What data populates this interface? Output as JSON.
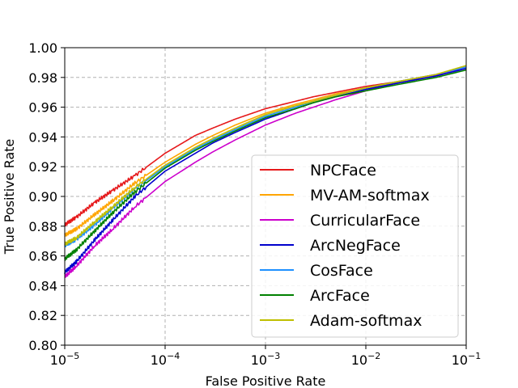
{
  "chart_data": {
    "type": "line",
    "xlabel": "False Positive Rate",
    "ylabel": "True Positive Rate",
    "xscale": "log",
    "xlim": [
      1e-05,
      0.1
    ],
    "ylim": [
      0.8,
      1.0
    ],
    "grid": true,
    "legend_position": "lower-right",
    "x_ticks": [
      {
        "value": 1e-05,
        "base": "10",
        "exp": "−5"
      },
      {
        "value": 0.0001,
        "base": "10",
        "exp": "−4"
      },
      {
        "value": 0.001,
        "base": "10",
        "exp": "−3"
      },
      {
        "value": 0.01,
        "base": "10",
        "exp": "−2"
      },
      {
        "value": 0.1,
        "base": "10",
        "exp": "−1"
      }
    ],
    "y_ticks": [
      {
        "value": 0.8,
        "label": "0.80"
      },
      {
        "value": 0.82,
        "label": "0.82"
      },
      {
        "value": 0.84,
        "label": "0.84"
      },
      {
        "value": 0.86,
        "label": "0.86"
      },
      {
        "value": 0.88,
        "label": "0.88"
      },
      {
        "value": 0.9,
        "label": "0.90"
      },
      {
        "value": 0.92,
        "label": "0.92"
      },
      {
        "value": 0.94,
        "label": "0.94"
      },
      {
        "value": 0.96,
        "label": "0.96"
      },
      {
        "value": 0.98,
        "label": "0.98"
      },
      {
        "value": 1.0,
        "label": "1.00"
      }
    ],
    "series": [
      {
        "name": "NPCFace",
        "color": "#e6191b",
        "x": [
          1e-05,
          1.3e-05,
          2e-05,
          3e-05,
          5e-05,
          0.0001,
          0.0002,
          0.0003,
          0.0005,
          0.001,
          0.002,
          0.003,
          0.005,
          0.01,
          0.02,
          0.05,
          0.1
        ],
        "y": [
          0.881,
          0.886,
          0.896,
          0.904,
          0.914,
          0.929,
          0.941,
          0.946,
          0.952,
          0.959,
          0.964,
          0.967,
          0.97,
          0.974,
          0.977,
          0.982,
          0.987
        ]
      },
      {
        "name": "MV-AM-softmax",
        "color": "#ffa500",
        "x": [
          1e-05,
          1.3e-05,
          2e-05,
          3e-05,
          5e-05,
          0.0001,
          0.0002,
          0.0003,
          0.0005,
          0.001,
          0.002,
          0.003,
          0.005,
          0.01,
          0.02,
          0.05,
          0.1
        ],
        "y": [
          0.874,
          0.878,
          0.888,
          0.897,
          0.909,
          0.923,
          0.935,
          0.941,
          0.948,
          0.956,
          0.962,
          0.965,
          0.969,
          0.973,
          0.976,
          0.981,
          0.986
        ]
      },
      {
        "name": "CurricularFace",
        "color": "#cc00cc",
        "x": [
          1e-05,
          1.3e-05,
          2e-05,
          3e-05,
          5e-05,
          0.0001,
          0.0002,
          0.0003,
          0.0005,
          0.001,
          0.002,
          0.003,
          0.005,
          0.01,
          0.02,
          0.05,
          0.1
        ],
        "y": [
          0.846,
          0.853,
          0.867,
          0.878,
          0.893,
          0.91,
          0.923,
          0.93,
          0.938,
          0.948,
          0.956,
          0.96,
          0.965,
          0.971,
          0.976,
          0.981,
          0.987
        ]
      },
      {
        "name": "ArcNegFace",
        "color": "#0000cc",
        "x": [
          1e-05,
          1.3e-05,
          2e-05,
          3e-05,
          5e-05,
          0.0001,
          0.0002,
          0.0003,
          0.0005,
          0.001,
          0.002,
          0.003,
          0.005,
          0.01,
          0.02,
          0.05,
          0.1
        ],
        "y": [
          0.849,
          0.856,
          0.871,
          0.884,
          0.9,
          0.917,
          0.929,
          0.936,
          0.943,
          0.952,
          0.959,
          0.963,
          0.967,
          0.972,
          0.976,
          0.981,
          0.986
        ]
      },
      {
        "name": "CosFace",
        "color": "#1e90ff",
        "x": [
          1e-05,
          1.3e-05,
          2e-05,
          3e-05,
          5e-05,
          0.0001,
          0.0002,
          0.0003,
          0.0005,
          0.001,
          0.002,
          0.003,
          0.005,
          0.01,
          0.02,
          0.05,
          0.1
        ],
        "y": [
          0.867,
          0.871,
          0.881,
          0.892,
          0.905,
          0.92,
          0.932,
          0.938,
          0.945,
          0.954,
          0.96,
          0.964,
          0.968,
          0.973,
          0.977,
          0.982,
          0.987
        ]
      },
      {
        "name": "ArcFace",
        "color": "#008000",
        "x": [
          1e-05,
          1.3e-05,
          2e-05,
          3e-05,
          5e-05,
          0.0001,
          0.0002,
          0.0003,
          0.0005,
          0.001,
          0.002,
          0.003,
          0.005,
          0.01,
          0.02,
          0.05,
          0.1
        ],
        "y": [
          0.858,
          0.864,
          0.877,
          0.889,
          0.903,
          0.919,
          0.931,
          0.937,
          0.944,
          0.953,
          0.959,
          0.963,
          0.967,
          0.971,
          0.975,
          0.98,
          0.985
        ]
      },
      {
        "name": "Adam-softmax",
        "color": "#bfbf00",
        "x": [
          1e-05,
          1.3e-05,
          2e-05,
          3e-05,
          5e-05,
          0.0001,
          0.0002,
          0.0003,
          0.0005,
          0.001,
          0.002,
          0.003,
          0.005,
          0.01,
          0.02,
          0.05,
          0.1
        ],
        "y": [
          0.868,
          0.872,
          0.883,
          0.893,
          0.906,
          0.921,
          0.933,
          0.939,
          0.946,
          0.955,
          0.961,
          0.964,
          0.968,
          0.973,
          0.977,
          0.982,
          0.988
        ]
      }
    ]
  }
}
